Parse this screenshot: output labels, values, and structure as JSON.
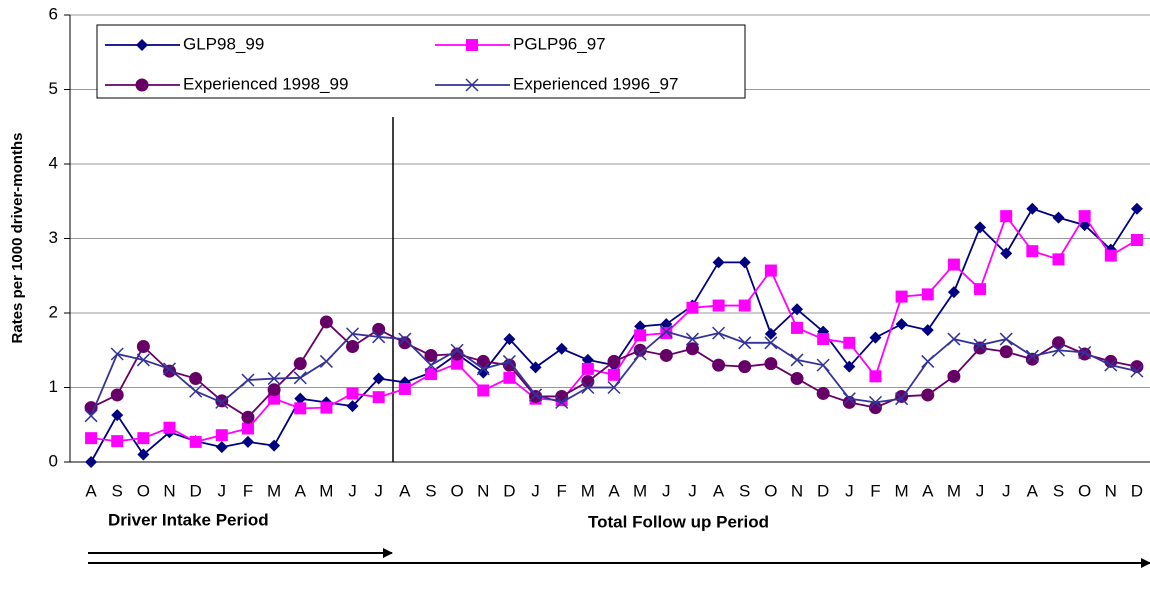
{
  "chart_data": {
    "type": "line",
    "y_label": "Rates per 1000 driver-months",
    "annotations": [
      "Driver Intake Period",
      "Total Follow up Period"
    ],
    "categories": [
      "A",
      "S",
      "O",
      "N",
      "D",
      "J",
      "F",
      "M",
      "A",
      "M",
      "J",
      "J",
      "A",
      "S",
      "O",
      "N",
      "D",
      "J",
      "F",
      "M",
      "A",
      "M",
      "J",
      "J",
      "A",
      "S",
      "O",
      "N",
      "D",
      "J",
      "F",
      "M",
      "A",
      "M",
      "J",
      "J",
      "A",
      "S",
      "O",
      "N",
      "D"
    ],
    "ylim": [
      0,
      6
    ],
    "yticks": [
      0,
      1,
      2,
      3,
      4,
      5,
      6
    ],
    "grid": true,
    "series": [
      {
        "name": "GLP98_99",
        "color": "#000080",
        "marker": "diamond",
        "values": [
          0,
          0.63,
          0.1,
          0.4,
          0.28,
          0.2,
          0.27,
          0.22,
          0.85,
          0.8,
          0.75,
          1.12,
          1.07,
          1.2,
          1.45,
          1.2,
          1.65,
          1.27,
          1.52,
          1.37,
          1.3,
          1.82,
          1.85,
          2.1,
          2.68,
          2.68,
          1.72,
          2.05,
          1.75,
          1.28,
          1.67,
          1.85,
          1.77,
          2.28,
          3.15,
          2.8,
          3.4,
          3.28,
          3.18,
          2.85,
          3.4
        ]
      },
      {
        "name": "PGLP96_97",
        "color": "#ff00ff",
        "marker": "square",
        "values": [
          0.32,
          0.28,
          0.32,
          0.46,
          0.27,
          0.36,
          0.45,
          0.85,
          0.72,
          0.73,
          0.92,
          0.87,
          0.98,
          1.18,
          1.32,
          0.96,
          1.13,
          0.85,
          0.83,
          1.25,
          1.17,
          1.7,
          1.73,
          2.07,
          2.1,
          2.1,
          2.57,
          1.8,
          1.65,
          1.6,
          1.15,
          2.22,
          2.25,
          2.65,
          2.32,
          3.3,
          2.83,
          2.72,
          3.3,
          2.77,
          2.98
        ]
      },
      {
        "name": "Experienced 1998_99",
        "color": "#660066",
        "marker": "circle",
        "values": [
          0.73,
          0.9,
          1.55,
          1.22,
          1.12,
          0.82,
          0.6,
          0.97,
          1.32,
          1.88,
          1.55,
          1.78,
          1.6,
          1.43,
          1.45,
          1.35,
          1.3,
          0.88,
          0.88,
          1.08,
          1.35,
          1.5,
          1.43,
          1.52,
          1.3,
          1.28,
          1.32,
          1.12,
          0.92,
          0.8,
          0.73,
          0.88,
          0.9,
          1.15,
          1.53,
          1.48,
          1.38,
          1.6,
          1.45,
          1.35,
          1.28
        ]
      },
      {
        "name": "Experienced 1996_97",
        "color": "#333399",
        "marker": "x",
        "values": [
          0.62,
          1.45,
          1.37,
          1.25,
          0.95,
          0.8,
          1.1,
          1.12,
          1.13,
          1.35,
          1.72,
          1.68,
          1.65,
          1.3,
          1.5,
          1.25,
          1.35,
          0.9,
          0.8,
          1.0,
          1.0,
          1.45,
          1.75,
          1.65,
          1.73,
          1.6,
          1.6,
          1.37,
          1.3,
          0.85,
          0.8,
          0.85,
          1.35,
          1.65,
          1.57,
          1.65,
          1.42,
          1.5,
          1.47,
          1.3,
          1.22
        ]
      }
    ]
  }
}
